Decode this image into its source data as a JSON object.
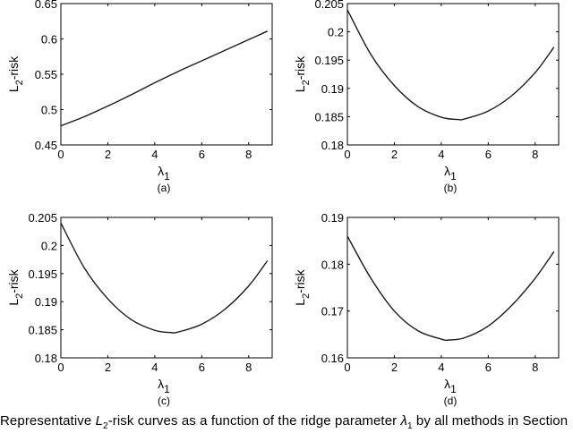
{
  "caption": {
    "prefix": "Representative ",
    "risk_var": "L",
    "risk_sub": "2",
    "middle": "-risk curves as a function of the ridge parameter ",
    "param_var": "λ",
    "param_sub": "1",
    "suffix": " by all methods in Section"
  },
  "chart_data": [
    {
      "type": "line",
      "panel_label": "(a)",
      "xlabel": "λ1",
      "ylabel": "L2-risk",
      "xlim": [
        0,
        9
      ],
      "ylim": [
        0.45,
        0.65
      ],
      "xticks": [
        0,
        2,
        4,
        6,
        8
      ],
      "yticks": [
        0.45,
        0.5,
        0.55,
        0.6,
        0.65
      ],
      "ytick_labels": [
        "0.45",
        "0.5",
        "0.55",
        "0.6",
        "0.65"
      ],
      "grid": false,
      "x": [
        0,
        1,
        2,
        3,
        4,
        5,
        6,
        7,
        8,
        8.8
      ],
      "series": [
        {
          "name": "L2-risk",
          "values": [
            0.477,
            0.49,
            0.505,
            0.521,
            0.538,
            0.554,
            0.569,
            0.584,
            0.599,
            0.611
          ]
        }
      ]
    },
    {
      "type": "line",
      "panel_label": "(b)",
      "xlabel": "λ1",
      "ylabel": "L2-risk",
      "xlim": [
        0,
        9
      ],
      "ylim": [
        0.18,
        0.205
      ],
      "xticks": [
        0,
        2,
        4,
        6,
        8
      ],
      "yticks": [
        0.18,
        0.185,
        0.19,
        0.195,
        0.2,
        0.205
      ],
      "ytick_labels": [
        "0.18",
        "0.185",
        "0.19",
        "0.195",
        "0.2",
        "0.205"
      ],
      "grid": false,
      "x": [
        0,
        1,
        2,
        3,
        4,
        4.7,
        5,
        6,
        7,
        8,
        8.8
      ],
      "series": [
        {
          "name": "L2-risk",
          "values": [
            0.2039,
            0.196,
            0.1905,
            0.1868,
            0.1849,
            0.1845,
            0.1846,
            0.186,
            0.1887,
            0.1928,
            0.1973
          ]
        }
      ]
    },
    {
      "type": "line",
      "panel_label": "(c)",
      "xlabel": "λ1",
      "ylabel": "L2-risk",
      "xlim": [
        0,
        9
      ],
      "ylim": [
        0.18,
        0.205
      ],
      "xticks": [
        0,
        2,
        4,
        6,
        8
      ],
      "yticks": [
        0.18,
        0.185,
        0.19,
        0.195,
        0.2,
        0.205
      ],
      "ytick_labels": [
        "0.18",
        "0.185",
        "0.19",
        "0.195",
        "0.2",
        "0.205"
      ],
      "grid": false,
      "x": [
        0,
        1,
        2,
        3,
        4,
        4.7,
        5,
        6,
        7,
        8,
        8.8
      ],
      "series": [
        {
          "name": "L2-risk",
          "values": [
            0.204,
            0.196,
            0.1905,
            0.1868,
            0.1849,
            0.1845,
            0.1846,
            0.186,
            0.1887,
            0.1928,
            0.1973
          ]
        }
      ]
    },
    {
      "type": "line",
      "panel_label": "(d)",
      "xlabel": "λ1",
      "ylabel": "L2-risk",
      "xlim": [
        0,
        9
      ],
      "ylim": [
        0.16,
        0.19
      ],
      "xticks": [
        0,
        2,
        4,
        6,
        8
      ],
      "yticks": [
        0.16,
        0.17,
        0.18,
        0.19
      ],
      "ytick_labels": [
        "0.16",
        "0.17",
        "0.18",
        "0.19"
      ],
      "grid": false,
      "x": [
        0,
        1,
        2,
        3,
        4,
        4.3,
        5,
        6,
        7,
        8,
        8.8
      ],
      "series": [
        {
          "name": "L2-risk",
          "values": [
            0.186,
            0.177,
            0.17,
            0.1658,
            0.164,
            0.1638,
            0.1643,
            0.1668,
            0.1712,
            0.177,
            0.1827
          ]
        }
      ]
    }
  ]
}
